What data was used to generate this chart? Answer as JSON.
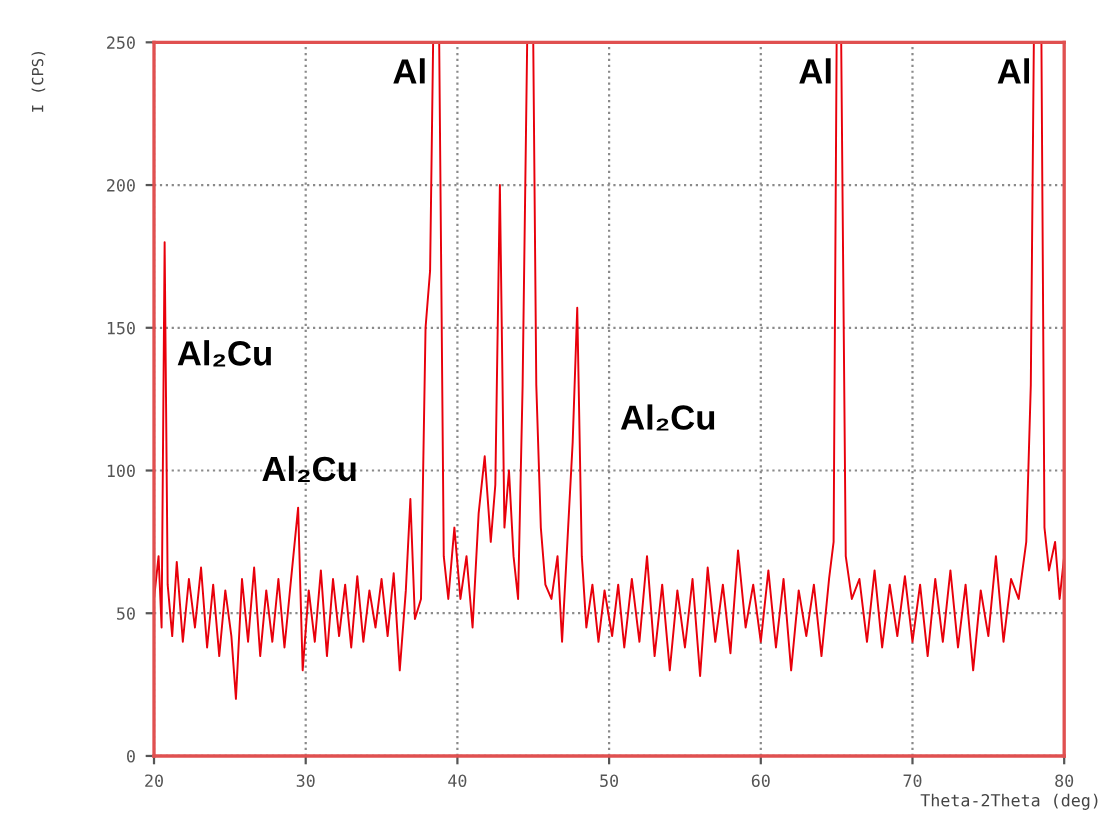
{
  "chart_data": {
    "type": "line",
    "xlabel": "Theta-2Theta (deg)",
    "ylabel": "I (CPS)",
    "series": [
      {
        "color": "#e8000b",
        "x": [
          20.0,
          20.3,
          20.5,
          20.7,
          20.9,
          21.2,
          21.5,
          21.9,
          22.3,
          22.7,
          23.1,
          23.5,
          23.9,
          24.3,
          24.7,
          25.1,
          25.4,
          25.8,
          26.2,
          26.6,
          27.0,
          27.4,
          27.8,
          28.2,
          28.6,
          29.0,
          29.5,
          29.8,
          30.2,
          30.6,
          31.0,
          31.4,
          31.8,
          32.2,
          32.6,
          33.0,
          33.4,
          33.8,
          34.2,
          34.6,
          35.0,
          35.4,
          35.8,
          36.2,
          36.6,
          36.9,
          37.2,
          37.6,
          37.9,
          38.2,
          38.4,
          38.8,
          39.1,
          39.4,
          39.8,
          40.2,
          40.6,
          41.0,
          41.4,
          41.8,
          42.2,
          42.5,
          42.8,
          43.1,
          43.4,
          43.7,
          44.0,
          44.3,
          44.6,
          45.0,
          45.2,
          45.5,
          45.8,
          46.2,
          46.6,
          46.9,
          47.3,
          47.6,
          47.9,
          48.2,
          48.5,
          48.9,
          49.3,
          49.7,
          50.2,
          50.6,
          51.0,
          51.5,
          52.0,
          52.5,
          53.0,
          53.5,
          54.0,
          54.5,
          55.0,
          55.5,
          56.0,
          56.5,
          57.0,
          57.5,
          58.0,
          58.5,
          59.0,
          59.5,
          60.0,
          60.5,
          61.0,
          61.5,
          62.0,
          62.5,
          63.0,
          63.5,
          64.0,
          64.5,
          64.8,
          65.0,
          65.3,
          65.6,
          66.0,
          66.5,
          67.0,
          67.5,
          68.0,
          68.5,
          69.0,
          69.5,
          70.0,
          70.5,
          71.0,
          71.5,
          72.0,
          72.5,
          73.0,
          73.5,
          74.0,
          74.5,
          75.0,
          75.5,
          76.0,
          76.5,
          77.0,
          77.5,
          77.8,
          78.0,
          78.5,
          78.7,
          79.0,
          79.4,
          79.7,
          80.0
        ],
        "values": [
          55,
          70,
          45,
          180,
          60,
          42,
          68,
          40,
          62,
          45,
          66,
          38,
          60,
          35,
          58,
          42,
          20,
          62,
          40,
          66,
          35,
          58,
          40,
          62,
          38,
          60,
          87,
          30,
          58,
          40,
          65,
          35,
          62,
          42,
          60,
          38,
          63,
          40,
          58,
          45,
          62,
          42,
          64,
          30,
          58,
          90,
          48,
          55,
          150,
          170,
          250,
          250,
          70,
          55,
          80,
          55,
          70,
          45,
          85,
          105,
          75,
          95,
          200,
          80,
          100,
          70,
          55,
          130,
          250,
          250,
          130,
          80,
          60,
          55,
          70,
          40,
          80,
          110,
          157,
          70,
          45,
          60,
          40,
          58,
          42,
          60,
          38,
          62,
          40,
          70,
          35,
          60,
          30,
          58,
          38,
          62,
          28,
          66,
          40,
          60,
          36,
          72,
          45,
          60,
          40,
          65,
          38,
          62,
          30,
          58,
          42,
          60,
          35,
          62,
          75,
          250,
          250,
          70,
          55,
          62,
          40,
          65,
          38,
          60,
          42,
          63,
          40,
          60,
          35,
          62,
          40,
          65,
          38,
          60,
          30,
          58,
          42,
          70,
          40,
          62,
          55,
          75,
          130,
          250,
          250,
          80,
          65,
          75,
          55,
          70
        ]
      }
    ],
    "xlim": [
      20,
      80
    ],
    "xticks": [
      20,
      30,
      40,
      50,
      60,
      70,
      80
    ],
    "ylim": [
      0,
      250
    ],
    "yticks": [
      0,
      50,
      100,
      150,
      200,
      250
    ],
    "grid": true,
    "marker": "none",
    "line_style": "solid",
    "annotations": [
      "Al",
      "Al",
      "Al",
      "Al₂Cu",
      "Al₂Cu",
      "Al₂Cu"
    ]
  }
}
